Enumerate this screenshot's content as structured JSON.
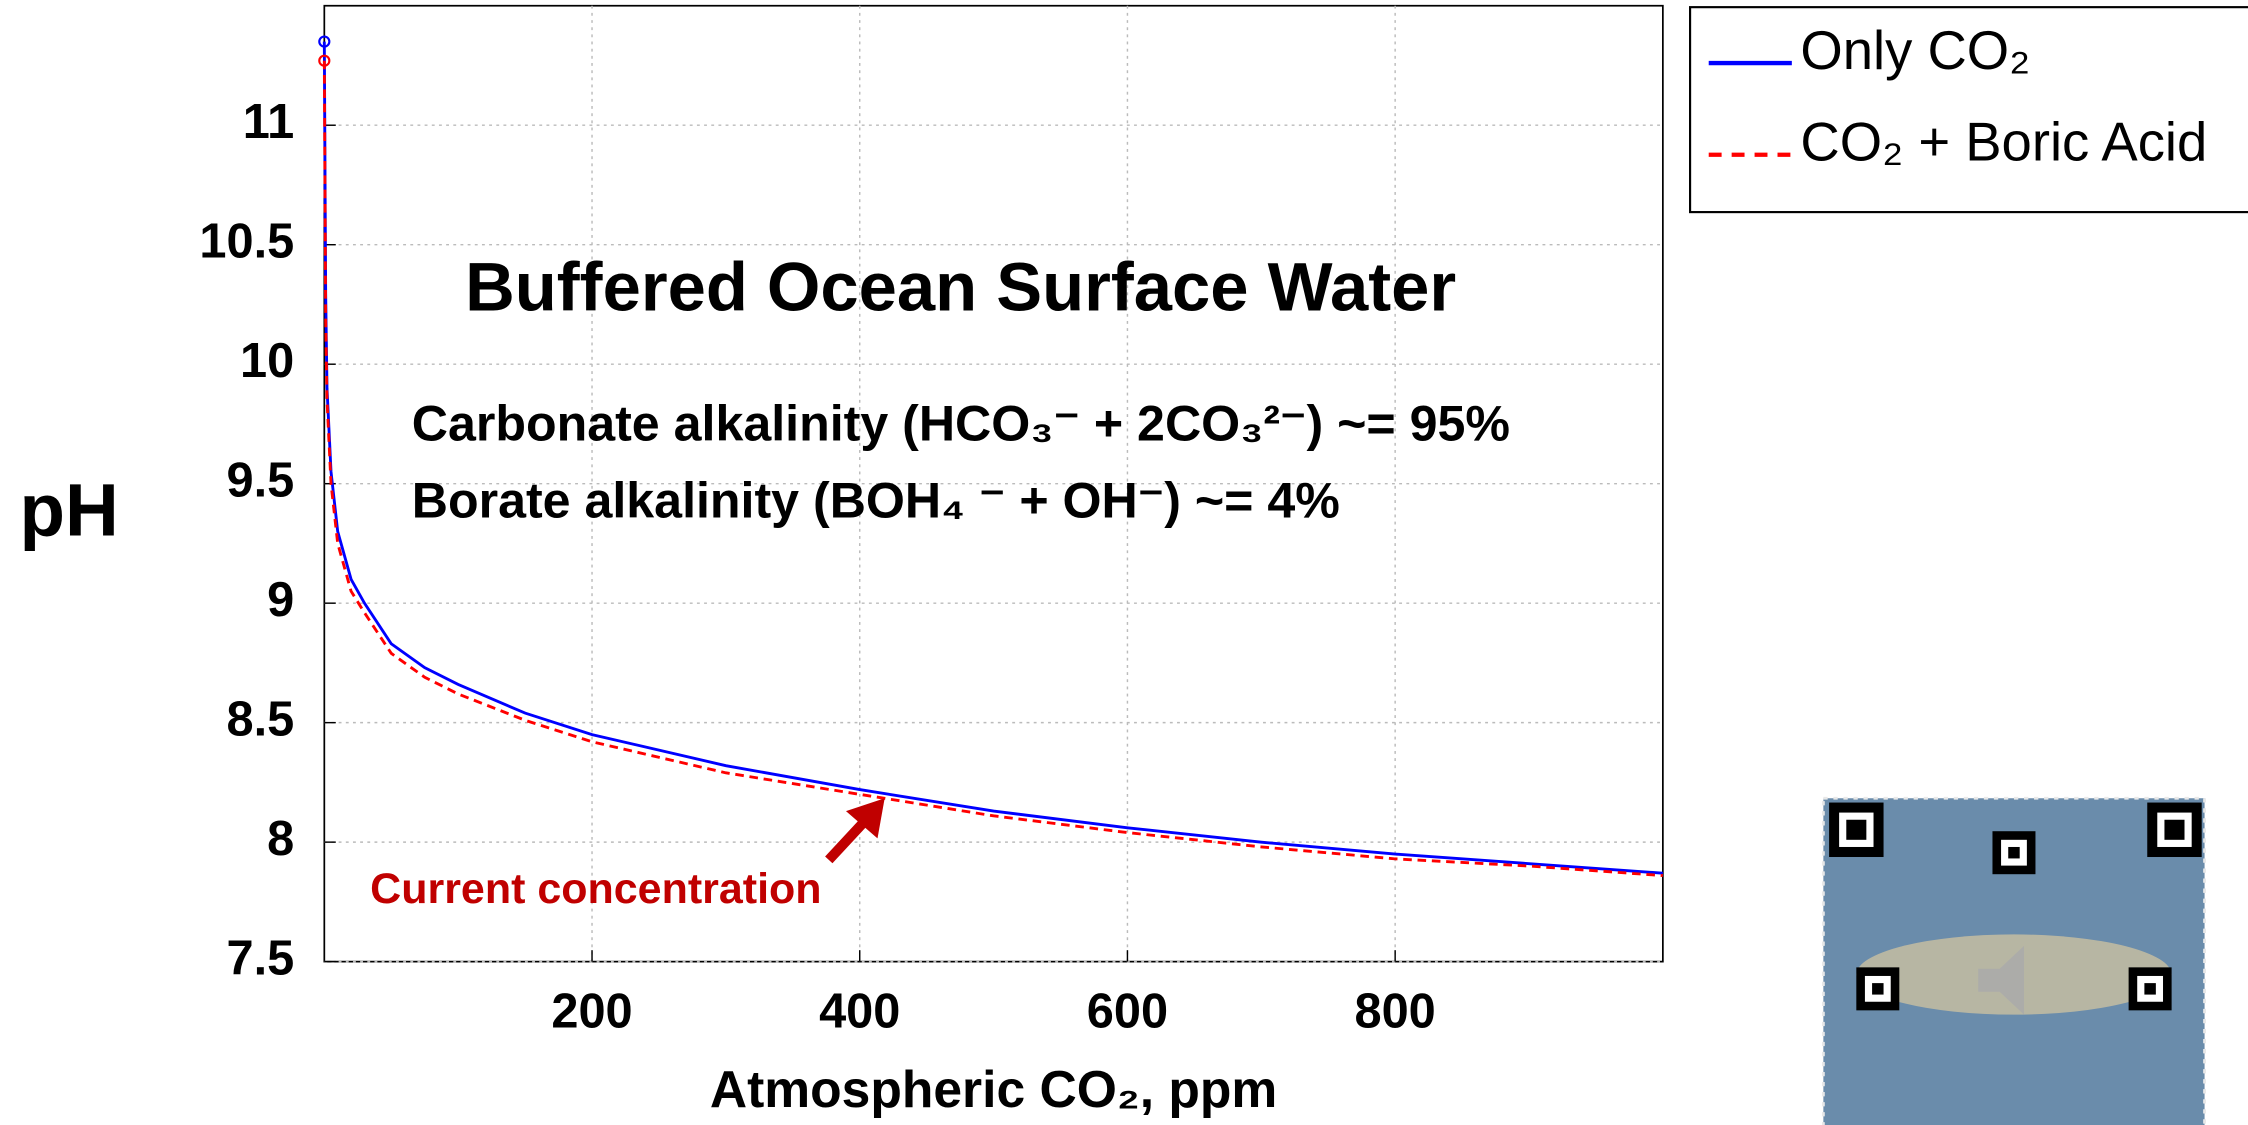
{
  "chart_data": {
    "type": "line",
    "title": "Buffered Ocean Surface Water",
    "annotations": [
      "Carbonate alkalinity (HCO₃⁻ + 2CO₃²⁻) ~= 95%",
      "Borate alkalinity (BOH₄ ⁻ + OH⁻) ~= 4%",
      "Current concentration"
    ],
    "xlabel": "Atmospheric CO₂, ppm",
    "ylabel": "pH",
    "x": [
      0,
      1,
      2,
      5,
      10,
      20,
      30,
      50,
      75,
      100,
      150,
      200,
      300,
      400,
      500,
      600,
      700,
      800,
      900,
      1000
    ],
    "series": [
      {
        "name": "Only CO₂",
        "color": "#0000ff",
        "dash": false,
        "values": [
          11.35,
          10.3,
          9.9,
          9.55,
          9.3,
          9.1,
          9.0,
          8.83,
          8.73,
          8.66,
          8.54,
          8.45,
          8.32,
          8.22,
          8.13,
          8.06,
          8.0,
          7.95,
          7.91,
          7.87
        ]
      },
      {
        "name": "CO₂ + Boric Acid",
        "color": "#ff0000",
        "dash": true,
        "values": [
          11.27,
          10.2,
          9.85,
          9.5,
          9.25,
          9.05,
          8.96,
          8.79,
          8.69,
          8.62,
          8.51,
          8.42,
          8.29,
          8.2,
          8.11,
          8.04,
          7.98,
          7.93,
          7.9,
          7.86
        ]
      }
    ],
    "xlim": [
      0,
      1000
    ],
    "xticks": [
      200,
      400,
      600,
      800
    ],
    "ylim": [
      7.5,
      11.5
    ],
    "yticks": [
      7.5,
      8,
      8.5,
      9,
      9.5,
      10,
      10.5,
      11
    ],
    "grid": true,
    "legend": "outside-right"
  }
}
